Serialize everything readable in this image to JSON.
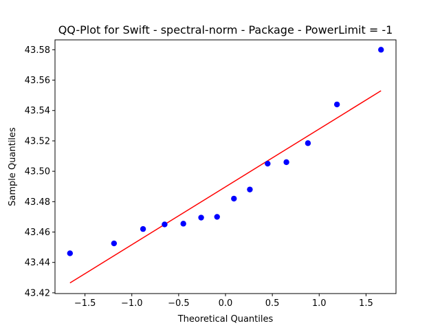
{
  "chart_data": {
    "type": "scatter",
    "title": "QQ-Plot for Swift - spectral-norm - Package - PowerLimit = -1",
    "xlabel": "Theoretical Quantiles",
    "ylabel": "Sample Quantiles",
    "xlim": [
      -1.82,
      1.82
    ],
    "ylim": [
      43.4195,
      43.5865
    ],
    "grid": false,
    "xticks": [
      -1.5,
      -1.0,
      -0.5,
      0.0,
      0.5,
      1.0,
      1.5
    ],
    "xtick_labels": [
      "−1.5",
      "−1.0",
      "−0.5",
      "0.0",
      "0.5",
      "1.0",
      "1.5"
    ],
    "yticks": [
      43.42,
      43.44,
      43.46,
      43.48,
      43.5,
      43.52,
      43.54,
      43.56,
      43.58
    ],
    "ytick_labels": [
      "43.42",
      "43.44",
      "43.46",
      "43.48",
      "43.50",
      "43.52",
      "43.54",
      "43.56",
      "43.58"
    ],
    "series": [
      {
        "kind": "points",
        "color": "#0000ff",
        "x": [
          -1.66,
          -1.19,
          -0.88,
          -0.65,
          -0.45,
          -0.26,
          -0.09,
          0.09,
          0.26,
          0.45,
          0.65,
          0.88,
          1.19,
          1.66
        ],
        "y": [
          43.446,
          43.4525,
          43.462,
          43.465,
          43.4655,
          43.4695,
          43.47,
          43.482,
          43.488,
          43.505,
          43.506,
          43.5185,
          43.544,
          43.58
        ]
      },
      {
        "kind": "line",
        "color": "#ff0000",
        "x": [
          -1.66,
          1.66
        ],
        "y": [
          43.4265,
          43.553
        ]
      }
    ]
  }
}
